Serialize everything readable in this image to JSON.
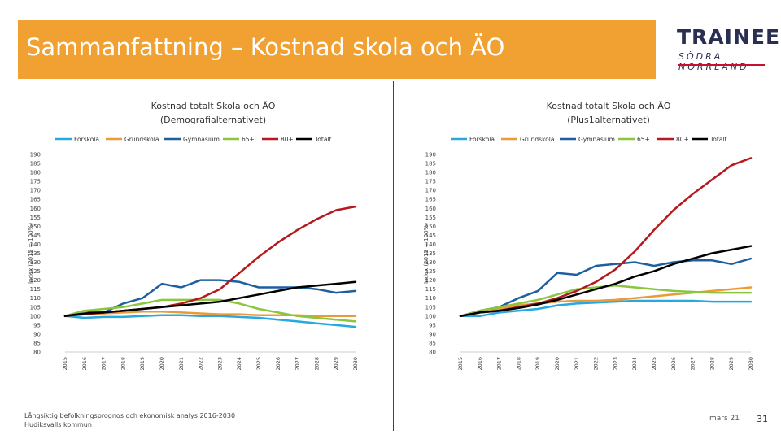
{
  "slide": {
    "title": "Sammanfattning – Kostnad skola och ÄO",
    "logo_top": "TRAINEE",
    "logo_bottom": "SÖDRA NORRLAND",
    "source_line1": "Långsiktig befolkningsprognos och ekonomisk analys 2016-2030",
    "source_line2": "Hudiksvalls kommun",
    "date": "mars 21",
    "page_number": "31"
  },
  "colors": {
    "banner": "#f0a132",
    "Förskola": "#25a9e0",
    "Grundskola": "#ec9a37",
    "Gymnasium": "#1f5f9e",
    "65+": "#8cc63f",
    "80+": "#b5191e",
    "Totalt": "#000000"
  },
  "chart_data": [
    {
      "type": "line",
      "title": "Kostnad totalt Skola och ÄO",
      "subtitle": "(Demografialternativet)",
      "ylabel": "Index (2015 = 100%)",
      "ylim": [
        80,
        190
      ],
      "yticks": [
        80,
        85,
        90,
        95,
        100,
        105,
        110,
        115,
        120,
        125,
        130,
        135,
        140,
        145,
        150,
        155,
        160,
        165,
        170,
        175,
        180,
        185,
        190
      ],
      "x": [
        "2015",
        "2016",
        "2017",
        "2018",
        "2019",
        "2020",
        "2021",
        "2022",
        "2023",
        "2024",
        "2025",
        "2026",
        "2027",
        "2028",
        "2029",
        "2030"
      ],
      "legend": "top",
      "series": [
        {
          "name": "Förskola",
          "values": [
            100,
            99,
            99.5,
            99.5,
            100,
            100.5,
            100.5,
            100,
            100,
            99.5,
            99,
            98,
            97,
            96,
            95,
            94
          ]
        },
        {
          "name": "Grundskola",
          "values": [
            100,
            101,
            101.5,
            102,
            102.5,
            102.5,
            102,
            101.5,
            101,
            101,
            100.5,
            100.5,
            100.5,
            100,
            100,
            100
          ]
        },
        {
          "name": "Gymnasium",
          "values": [
            100,
            103,
            102,
            107,
            110,
            118,
            116,
            120,
            120,
            119,
            116,
            116,
            116,
            115,
            113,
            114
          ]
        },
        {
          "name": "65+",
          "values": [
            100,
            103,
            104,
            105,
            107,
            109,
            109,
            109,
            109,
            107,
            104,
            102,
            100,
            99,
            98,
            97
          ]
        },
        {
          "name": "80+",
          "values": [
            100,
            101,
            102,
            103,
            104,
            105,
            107,
            110,
            115,
            124,
            133,
            141,
            148,
            154,
            159,
            161
          ]
        },
        {
          "name": "Totalt",
          "values": [
            100,
            101.5,
            102,
            103,
            104,
            105,
            106,
            107,
            108,
            110,
            112,
            114,
            116,
            117,
            118,
            119
          ]
        }
      ]
    },
    {
      "type": "line",
      "title": "Kostnad totalt Skola och ÄO",
      "subtitle": "(Plus1alternativet)",
      "ylabel": "Index (2015 = 100%)",
      "ylim": [
        80,
        190
      ],
      "yticks": [
        80,
        85,
        90,
        95,
        100,
        105,
        110,
        115,
        120,
        125,
        130,
        135,
        140,
        145,
        150,
        155,
        160,
        165,
        170,
        175,
        180,
        185,
        190
      ],
      "x": [
        "2015",
        "2016",
        "2017",
        "2018",
        "2019",
        "2020",
        "2021",
        "2022",
        "2023",
        "2024",
        "2025",
        "2026",
        "2027",
        "2028",
        "2029",
        "2030"
      ],
      "legend": "top",
      "series": [
        {
          "name": "Förskola",
          "values": [
            100,
            100,
            102,
            103,
            104,
            106,
            107,
            107.5,
            108,
            108.5,
            108.5,
            108.5,
            108.5,
            108,
            108,
            108
          ]
        },
        {
          "name": "Grundskola",
          "values": [
            100,
            102,
            104,
            106,
            107,
            108,
            108.5,
            108.5,
            109,
            110,
            111,
            112,
            113,
            114,
            115,
            116
          ]
        },
        {
          "name": "Gymnasium",
          "values": [
            100,
            103,
            105,
            110,
            114,
            124,
            123,
            128,
            129,
            130,
            128,
            130,
            131,
            131,
            129,
            132
          ]
        },
        {
          "name": "65+",
          "values": [
            100,
            103,
            105,
            107,
            109,
            112,
            115,
            116,
            117,
            116,
            115,
            114,
            113.5,
            113,
            113,
            113
          ]
        },
        {
          "name": "80+",
          "values": [
            100,
            102,
            103,
            105,
            107,
            110,
            114,
            119,
            126,
            136,
            148,
            159,
            168,
            176,
            184,
            188
          ]
        },
        {
          "name": "Totalt",
          "values": [
            100,
            102,
            103,
            104.5,
            106.5,
            109,
            112,
            115,
            118,
            122,
            125,
            129,
            132,
            135,
            137,
            139
          ]
        }
      ]
    }
  ]
}
